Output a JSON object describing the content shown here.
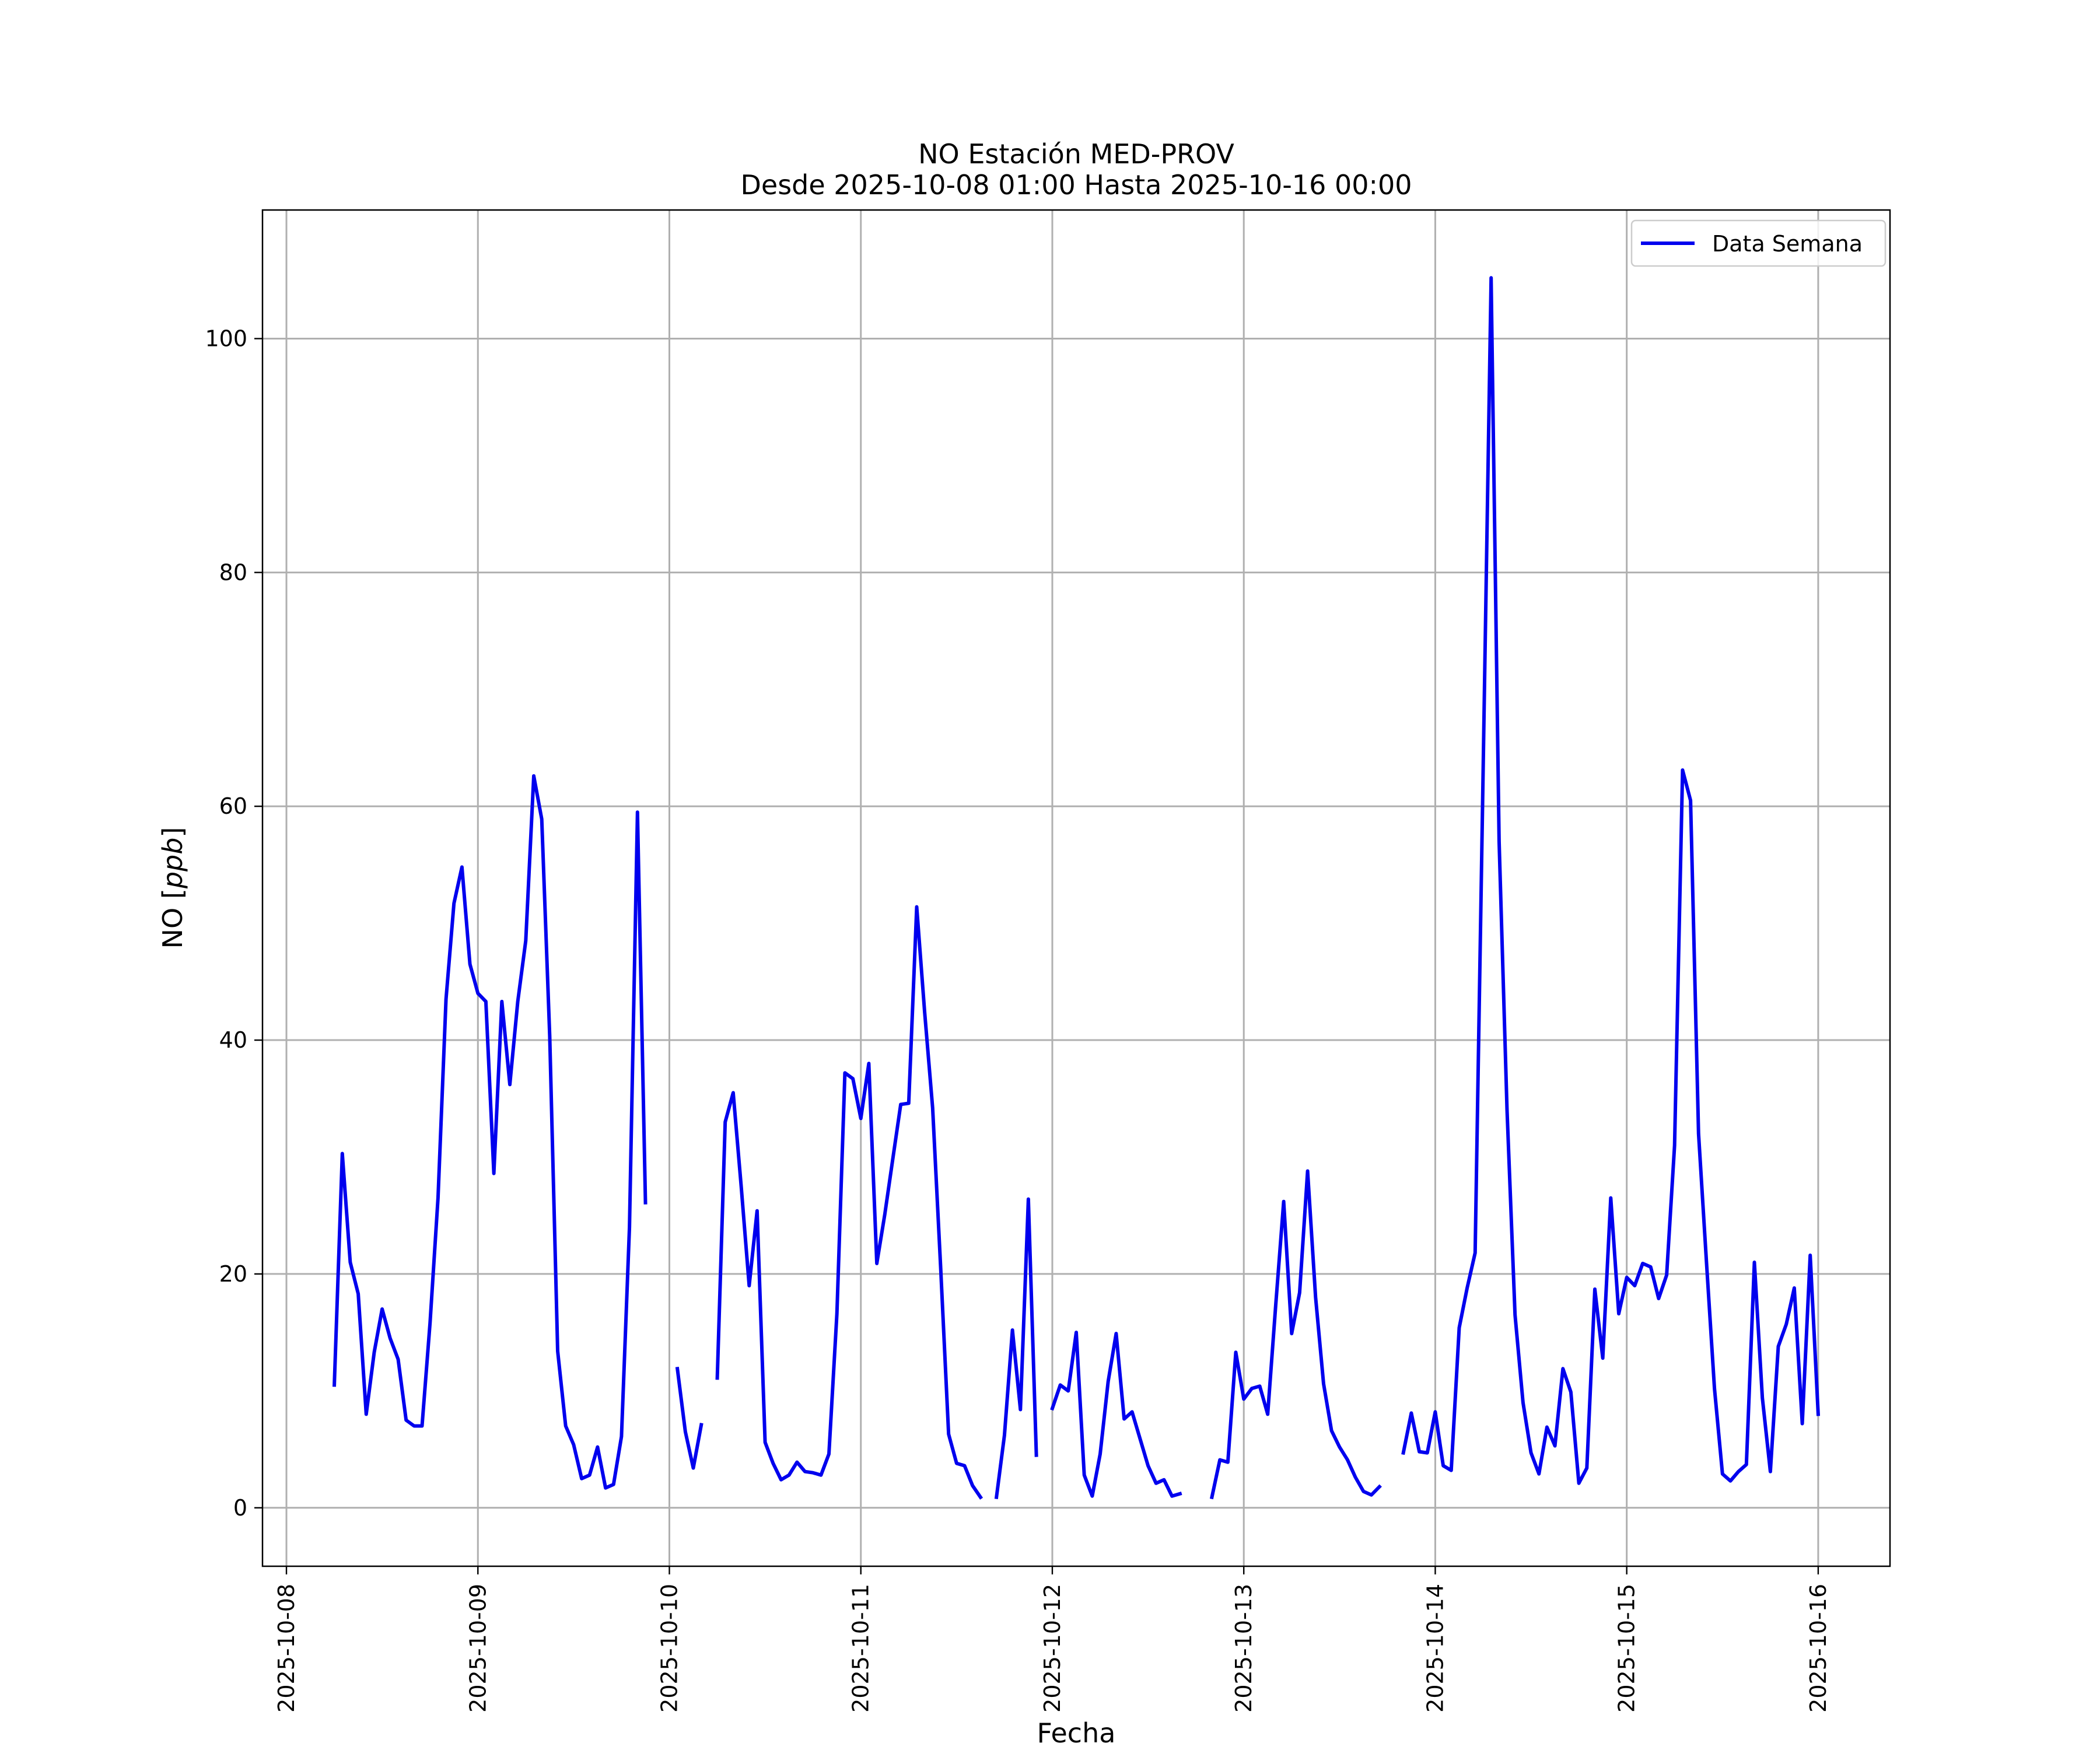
{
  "chart_data": {
    "type": "line",
    "title": "NO Estación MED-PROV",
    "subtitle": "Desde 2025-10-08 01:00 Hasta 2025-10-16 00:00",
    "xlabel": "Fecha",
    "ylabel": "NO [ppb]",
    "ylabel_parts": {
      "prefix": "NO ",
      "open": "[",
      "unit": "ppb",
      "close": "]"
    },
    "xlim": [
      "2025-10-07 21:00",
      "2025-10-16 09:00"
    ],
    "ylim": [
      -5,
      111
    ],
    "x_tick_labels": [
      "2025-10-08",
      "2025-10-09",
      "2025-10-10",
      "2025-10-11",
      "2025-10-12",
      "2025-10-13",
      "2025-10-14",
      "2025-10-15",
      "2025-10-16"
    ],
    "y_ticks": [
      0,
      20,
      40,
      60,
      80,
      100
    ],
    "y_tick_labels": [
      "0",
      "20",
      "40",
      "60",
      "80",
      "100"
    ],
    "grid": true,
    "legend_position": "top-right",
    "series": [
      {
        "name": "Data Semana",
        "color": "#0000ee",
        "segments": [
          {
            "start": "2025-10-08 06:00",
            "values": [
              10.5,
              30.3,
              21.0,
              18.3,
              8.0,
              13.3,
              17.0,
              14.5,
              12.7,
              7.5,
              7.0,
              7.0,
              15.8,
              26.5,
              43.5,
              51.7,
              54.8,
              46.5,
              44.0,
              43.3,
              28.6,
              43.3,
              36.2,
              43.3,
              48.5,
              62.6,
              58.9,
              40.3,
              13.4,
              7.0,
              5.4,
              2.5,
              2.8,
              5.2,
              1.7,
              2.0,
              6.1,
              24.0,
              59.5,
              26.1
            ]
          },
          {
            "start": "2025-10-10 01:00",
            "values": [
              11.9,
              6.5,
              3.4,
              7.1
            ]
          },
          {
            "start": "2025-10-10 06:00",
            "values": [
              11.1,
              33.0,
              35.5,
              27.5,
              19.0,
              25.4,
              5.6,
              3.8,
              2.4,
              2.8,
              3.9,
              3.1,
              3.0,
              2.8,
              4.6,
              16.6,
              37.2,
              36.7,
              33.3,
              38.0,
              20.9,
              25.1,
              29.8,
              34.5,
              34.6,
              51.4,
              42.4,
              34.2,
              20.6,
              6.3,
              3.8,
              3.6,
              1.9,
              0.9
            ]
          },
          {
            "start": "2025-10-11 17:00",
            "values": [
              0.9,
              6.2,
              15.2,
              8.4,
              26.4,
              4.5
            ]
          },
          {
            "start": "2025-10-12 00:00",
            "values": [
              8.5,
              10.5,
              10.0,
              15.0,
              2.8,
              1.0,
              4.6,
              10.8,
              14.9,
              7.6,
              8.2,
              5.9,
              3.6,
              2.1,
              2.4,
              1.0,
              1.2
            ]
          },
          {
            "start": "2025-10-12 20:00",
            "values": [
              0.9,
              4.1,
              3.9,
              13.3,
              9.3,
              10.2,
              10.4,
              8.0,
              17.3,
              26.2,
              14.9,
              18.4,
              28.8,
              18.0,
              10.6,
              6.6,
              5.2,
              4.1,
              2.6,
              1.4,
              1.1,
              1.8
            ]
          },
          {
            "start": "2025-10-13 20:00",
            "values": [
              4.7,
              8.1,
              4.8,
              4.7,
              8.2,
              3.6,
              3.2,
              15.4,
              18.8,
              21.8,
              63.0,
              105.2,
              57.0,
              34.0,
              16.5,
              9.0,
              4.7,
              2.9,
              6.9,
              5.3,
              11.9,
              9.9,
              2.1,
              3.4,
              18.7,
              12.8,
              26.5,
              16.6,
              19.7,
              19.0,
              20.9,
              20.6,
              17.9,
              19.9,
              31.0,
              63.1,
              60.5,
              32.0,
              21.0,
              10.2,
              2.9,
              2.3,
              3.1,
              3.7,
              21.0,
              9.4,
              3.1,
              13.8,
              15.7,
              18.8,
              7.2,
              21.6,
              8.0
            ]
          }
        ]
      }
    ]
  }
}
